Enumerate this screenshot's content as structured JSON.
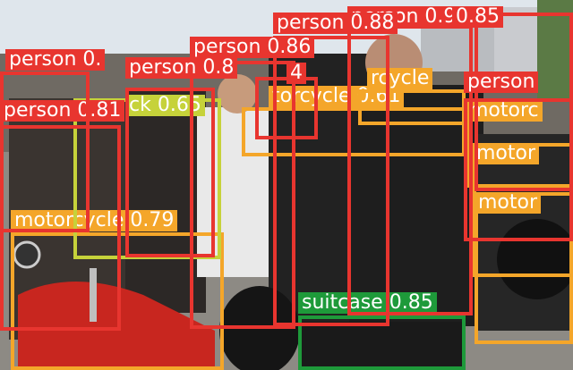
{
  "colors": {
    "person": "#e8352f",
    "motorcycle": "#f4a62a",
    "suitcase": "#1e9a3a",
    "backpack": "#c6d23a"
  },
  "labels": {
    "p1": "person 0.91",
    "p2": "0.85",
    "p3": "person 0.88",
    "p4": "person 0.86",
    "p5": "person 0.81",
    "p6": "person 0.",
    "p7": "person",
    "p8": "person 0.8",
    "p9": "4",
    "p10": "ck 0.65",
    "m1": "motorcycle 0.79",
    "m2": "torcycle 0.61",
    "m3": "rcycle",
    "m4": "motorc",
    "m5": "motor",
    "m6": "motor",
    "s1": "suitcase 0.85"
  }
}
